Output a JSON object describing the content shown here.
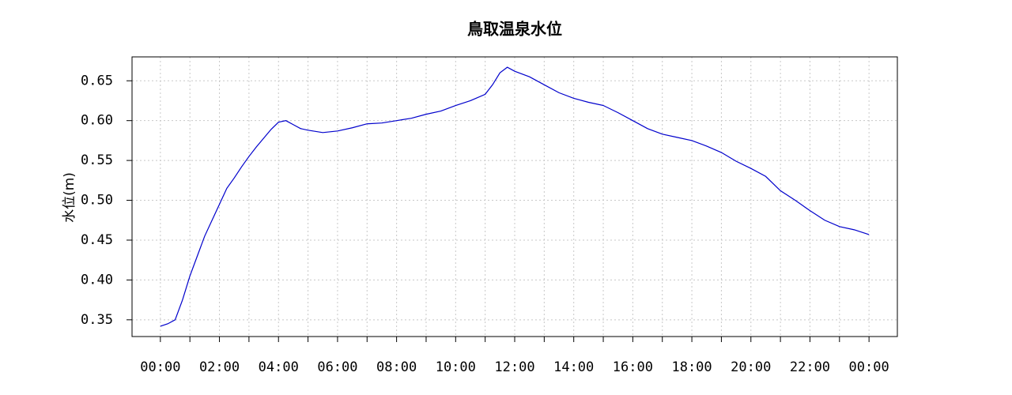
{
  "chart_data": {
    "type": "line",
    "title": "鳥取温泉水位",
    "y_label": "水位(m)",
    "x": [
      0,
      0.25,
      0.5,
      0.75,
      1.0,
      1.25,
      1.5,
      1.75,
      2.0,
      2.25,
      2.5,
      2.75,
      3.0,
      3.25,
      3.5,
      3.75,
      4.0,
      4.25,
      4.5,
      4.75,
      5.0,
      5.5,
      6.0,
      6.5,
      7.0,
      7.5,
      8.0,
      8.5,
      9.0,
      9.5,
      10.0,
      10.5,
      11.0,
      11.25,
      11.5,
      11.75,
      12.0,
      12.5,
      13.0,
      13.5,
      14.0,
      14.5,
      15.0,
      15.5,
      16.0,
      16.5,
      17.0,
      17.5,
      18.0,
      18.5,
      19.0,
      19.5,
      20.0,
      20.5,
      21.0,
      21.5,
      22.0,
      22.5,
      23.0,
      23.5,
      24.0
    ],
    "series": [
      {
        "name": "水位",
        "color": "#0000cc",
        "values": [
          0.342,
          0.345,
          0.35,
          0.375,
          0.405,
          0.43,
          0.455,
          0.475,
          0.495,
          0.515,
          0.528,
          0.542,
          0.555,
          0.567,
          0.578,
          0.589,
          0.598,
          0.6,
          0.595,
          0.59,
          0.588,
          0.585,
          0.587,
          0.591,
          0.596,
          0.597,
          0.6,
          0.603,
          0.608,
          0.612,
          0.619,
          0.625,
          0.633,
          0.645,
          0.66,
          0.667,
          0.662,
          0.655,
          0.645,
          0.635,
          0.628,
          0.623,
          0.619,
          0.61,
          0.6,
          0.59,
          0.583,
          0.579,
          0.575,
          0.568,
          0.56,
          0.549,
          0.54,
          0.53,
          0.512,
          0.5,
          0.487,
          0.475,
          0.467,
          0.463,
          0.457
        ]
      }
    ],
    "xlim": [
      -0.96,
      24.96
    ],
    "xticks": [
      {
        "value": 0,
        "label": "00:00"
      },
      {
        "value": 2,
        "label": "02:00"
      },
      {
        "value": 4,
        "label": "04:00"
      },
      {
        "value": 6,
        "label": "06:00"
      },
      {
        "value": 8,
        "label": "08:00"
      },
      {
        "value": 10,
        "label": "10:00"
      },
      {
        "value": 12,
        "label": "12:00"
      },
      {
        "value": 14,
        "label": "14:00"
      },
      {
        "value": 16,
        "label": "16:00"
      },
      {
        "value": 18,
        "label": "18:00"
      },
      {
        "value": 20,
        "label": "20:00"
      },
      {
        "value": 22,
        "label": "22:00"
      },
      {
        "value": 24,
        "label": "00:00"
      }
    ],
    "xminorticks": [
      1,
      3,
      5,
      7,
      9,
      11,
      13,
      15,
      17,
      19,
      21,
      23
    ],
    "ylim": [
      0.329,
      0.68
    ],
    "yticks": [
      0.35,
      {
        "value": 0.4,
        "label": "0.40"
      },
      0.45,
      {
        "value": 0.5,
        "label": "0.50"
      },
      0.55,
      {
        "value": 0.6,
        "label": "0.60"
      },
      0.65
    ],
    "grid": true
  }
}
